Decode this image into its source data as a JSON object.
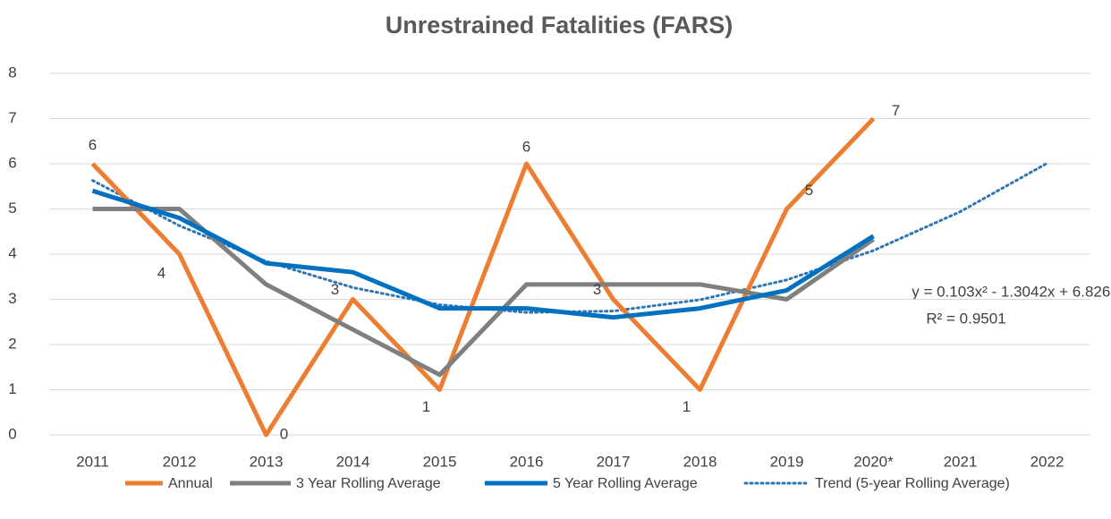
{
  "chart_data": {
    "type": "line",
    "title": "Unrestrained Fatalities (FARS)",
    "categories": [
      "2011",
      "2012",
      "2013",
      "2014",
      "2015",
      "2016",
      "2017",
      "2018",
      "2019",
      "2020*",
      "2021",
      "2022"
    ],
    "series": [
      {
        "name": "Annual",
        "color": "#ed7d31",
        "style": "solid",
        "data_labels": true,
        "values": [
          6,
          4,
          0,
          3,
          1,
          6,
          3,
          1,
          5,
          7,
          null,
          null
        ]
      },
      {
        "name": "3 Year Rolling Average",
        "color": "#7f7f7f",
        "style": "solid",
        "values": [
          5,
          5,
          3.33,
          2.33,
          1.33,
          3.33,
          3.33,
          3.33,
          3,
          4.33,
          null,
          null
        ]
      },
      {
        "name": "5 Year Rolling Average",
        "color": "#0070c0",
        "style": "solid",
        "values": [
          5.4,
          4.8,
          3.8,
          3.6,
          2.8,
          2.8,
          2.6,
          2.8,
          3.2,
          4.4,
          null,
          null
        ]
      },
      {
        "name": "Trend (5-year Rolling Average)",
        "color": "#2e75b6",
        "style": "dotted",
        "values": [
          5.63,
          4.63,
          3.84,
          3.26,
          2.88,
          2.71,
          2.74,
          2.99,
          3.43,
          4.08,
          4.94,
          6.01
        ]
      }
    ],
    "annotations": [
      "y = 0.103x² - 1.3042x + 6.8267",
      "R² = 0.9501"
    ],
    "ylim": [
      0,
      8
    ],
    "yticks": [
      0,
      1,
      2,
      3,
      4,
      5,
      6,
      7,
      8
    ],
    "grid": true,
    "legend": "bottom"
  }
}
